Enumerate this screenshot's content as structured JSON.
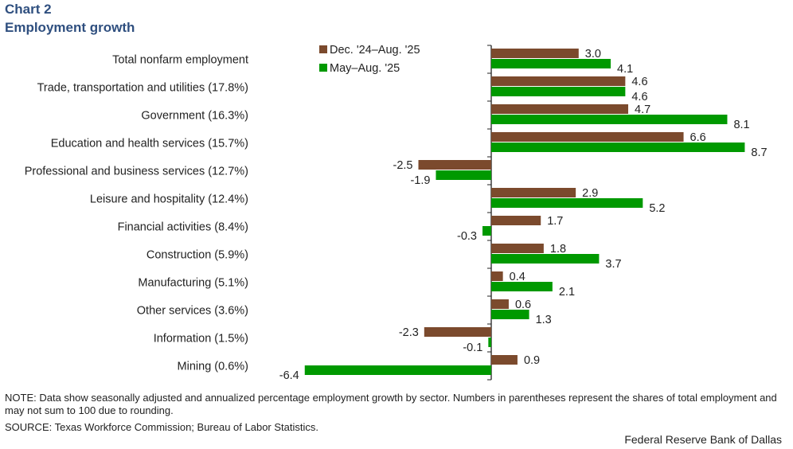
{
  "header": {
    "chart_number": "Chart 2",
    "title": "Employment growth"
  },
  "chart_data": {
    "type": "bar",
    "orientation": "horizontal",
    "title": "Employment growth",
    "categories": [
      "Total nonfarm employment",
      "Trade, transportation and utilities (17.8%)",
      "Government (16.3%)",
      "Education and health services (15.7%)",
      "Professional and business services (12.7%)",
      "Leisure and hospitality (12.4%)",
      "Financial activities (8.4%)",
      "Construction (5.9%)",
      "Manufacturing (5.1%)",
      "Other services (3.6%)",
      "Information (1.5%)",
      "Mining (0.6%)"
    ],
    "series": [
      {
        "name": "Dec. '24–Aug. '25",
        "color": "#7b4a2d",
        "values": [
          3.0,
          4.6,
          4.7,
          6.6,
          -2.5,
          2.9,
          1.7,
          1.8,
          0.4,
          0.6,
          -2.3,
          0.9
        ]
      },
      {
        "name": "May–Aug. '25",
        "color": "#009900",
        "values": [
          4.1,
          4.6,
          8.1,
          8.7,
          -1.9,
          5.2,
          -0.3,
          3.7,
          2.1,
          1.3,
          -0.1,
          -6.4
        ]
      }
    ],
    "xlim": [
      -6.4,
      8.7
    ],
    "legend": "top-left",
    "grid": false,
    "data_labels": true
  },
  "footer": {
    "note": "NOTE: Data show seasonally adjusted and annualized percentage employment growth by sector. Numbers in parentheses represent the shares of total employment and may not sum to 100 due to rounding.",
    "source": "SOURCE: Texas Workforce Commission; Bureau of Labor Statistics.",
    "credit": "Federal Reserve Bank of Dallas"
  }
}
